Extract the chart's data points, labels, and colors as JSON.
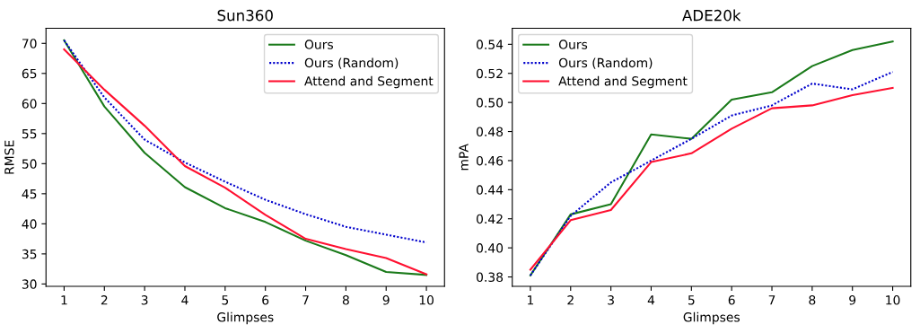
{
  "chart_data": [
    {
      "type": "line",
      "title": "Sun360",
      "xlabel": "Glimpses",
      "ylabel": "RMSE",
      "x": [
        1,
        2,
        3,
        4,
        5,
        6,
        7,
        8,
        9,
        10
      ],
      "xlim": [
        0.55,
        10.45
      ],
      "xticks": [
        1,
        2,
        3,
        4,
        5,
        6,
        7,
        8,
        9,
        10
      ],
      "ylim": [
        29.6,
        72.5
      ],
      "yticks": [
        30,
        35,
        40,
        45,
        50,
        55,
        60,
        65,
        70
      ],
      "grid": false,
      "legend": "top right",
      "series": [
        {
          "name": "Ours",
          "color": "#1a7a1a",
          "line_style": "solid",
          "values": [
            70.5,
            59.5,
            51.8,
            46.1,
            42.6,
            40.3,
            37.2,
            34.8,
            32.0,
            31.5
          ]
        },
        {
          "name": "Ours (Random)",
          "color": "#0000cc",
          "line_style": "dotted",
          "values": [
            70.5,
            61.0,
            54.0,
            50.2,
            47.0,
            44.0,
            41.6,
            39.5,
            38.2,
            36.9
          ]
        },
        {
          "name": "Attend and Segment",
          "color": "#ff1030",
          "line_style": "solid",
          "values": [
            69.0,
            62.3,
            56.3,
            49.6,
            46.0,
            41.5,
            37.5,
            35.8,
            34.3,
            31.6
          ]
        }
      ]
    },
    {
      "type": "line",
      "title": "ADE20k",
      "xlabel": "Glimpses",
      "ylabel": "mPA",
      "x": [
        1,
        2,
        3,
        4,
        5,
        6,
        7,
        8,
        9,
        10
      ],
      "xlim": [
        0.55,
        10.45
      ],
      "xticks": [
        1,
        2,
        3,
        4,
        5,
        6,
        7,
        8,
        9,
        10
      ],
      "ylim": [
        0.3735,
        0.551
      ],
      "yticks": [
        {
          "value": 0.38,
          "label": "0.38"
        },
        {
          "value": 0.4,
          "label": "0.40"
        },
        {
          "value": 0.42,
          "label": "0.42"
        },
        {
          "value": 0.44,
          "label": "0.44"
        },
        {
          "value": 0.46,
          "label": "0.46"
        },
        {
          "value": 0.48,
          "label": "0.48"
        },
        {
          "value": 0.5,
          "label": "0.50"
        },
        {
          "value": 0.52,
          "label": "0.52"
        },
        {
          "value": 0.54,
          "label": "0.54"
        }
      ],
      "grid": false,
      "legend": "top left",
      "series": [
        {
          "name": "Ours",
          "color": "#1a7a1a",
          "line_style": "solid",
          "values": [
            0.381,
            0.423,
            0.43,
            0.478,
            0.475,
            0.502,
            0.507,
            0.525,
            0.536,
            0.542
          ]
        },
        {
          "name": "Ours (Random)",
          "color": "#0000cc",
          "line_style": "dotted",
          "values": [
            0.381,
            0.422,
            0.445,
            0.46,
            0.475,
            0.491,
            0.498,
            0.513,
            0.509,
            0.521
          ]
        },
        {
          "name": "Attend and Segment",
          "color": "#ff1030",
          "line_style": "solid",
          "values": [
            0.385,
            0.419,
            0.426,
            0.459,
            0.465,
            0.482,
            0.496,
            0.498,
            0.505,
            0.51
          ]
        }
      ]
    }
  ]
}
